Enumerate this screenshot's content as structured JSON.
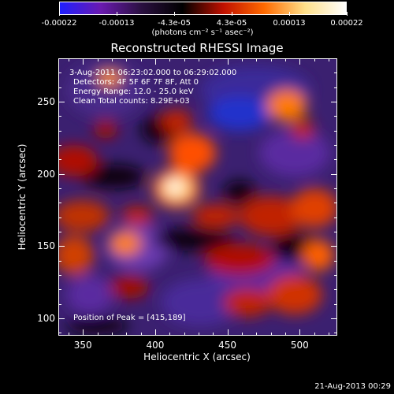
{
  "colorbar": {
    "tick_labels": [
      "-0.00022",
      "-0.00013",
      "-4.3e-05",
      "4.3e-05",
      "0.00013",
      "0.00022"
    ],
    "units": "(photons cm⁻² s⁻¹ asec⁻²)",
    "colors": [
      "#1f1fff",
      "#6a1ab0",
      "#2a1040",
      "#000000",
      "#c01000",
      "#ff6a00",
      "#ffe08a",
      "#ffffff"
    ]
  },
  "plot": {
    "title": "Reconstructed RHESSI Image",
    "annotations": {
      "time": "3-Aug-2011 06:23:02.000 to 06:29:02.000",
      "detectors": "Detectors: 4F 5F 6F 7F 8F, Att 0",
      "energy": "Energy Range: 12.0 - 25.0 keV",
      "clean": "Clean     Total counts: 8.29E+03",
      "peak": "Position of Peak = [415,189]"
    },
    "xlabel": "Heliocentric X (arcsec)",
    "ylabel": "Heliocentric Y (arcsec)",
    "xticks": [
      "350",
      "400",
      "450",
      "500"
    ],
    "yticks": [
      "100",
      "150",
      "200",
      "250"
    ],
    "xrange": [
      333,
      526
    ],
    "yrange": [
      88,
      280
    ]
  },
  "datestamp": "21-Aug-2013 00:29"
}
